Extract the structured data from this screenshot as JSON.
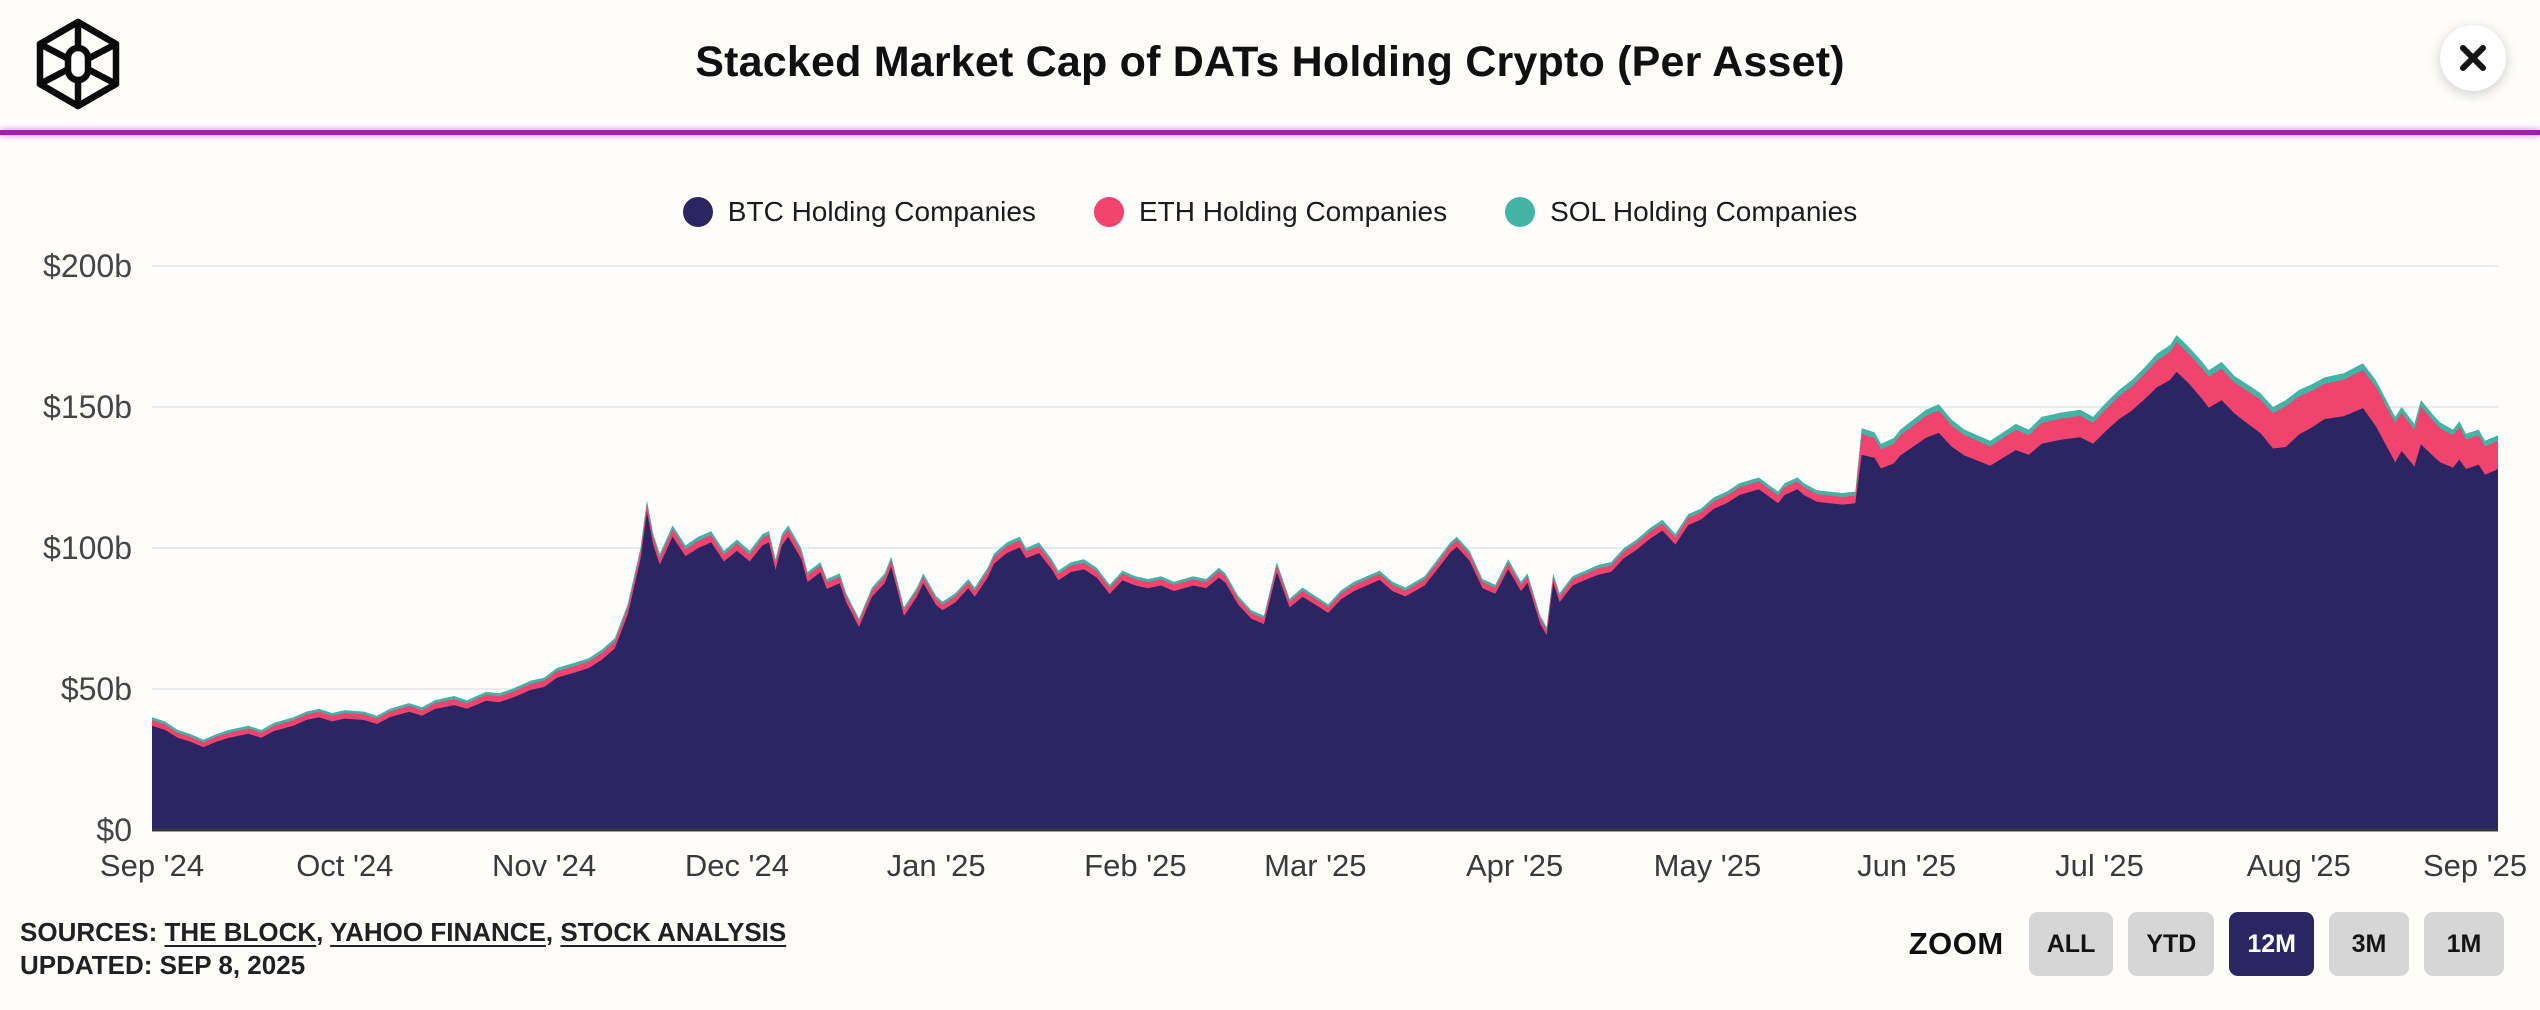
{
  "header": {
    "title": "Stacked Market Cap of DATs Holding Crypto (Per Asset)"
  },
  "legend": [
    {
      "label": "BTC Holding Companies",
      "color": "#2B2564"
    },
    {
      "label": "ETH Holding Companies",
      "color": "#F0436E"
    },
    {
      "label": "SOL Holding Companies",
      "color": "#42B4A6"
    }
  ],
  "footer": {
    "sources_label": "SOURCES:",
    "sources": [
      "THE BLOCK",
      "YAHOO FINANCE",
      "STOCK ANALYSIS"
    ],
    "separator": ",",
    "updated": "UPDATED: SEP 8, 2025"
  },
  "zoom": {
    "label": "ZOOM",
    "options": [
      "ALL",
      "YTD",
      "12M",
      "3M",
      "1M"
    ],
    "active": "12M"
  },
  "chart_data": {
    "type": "area",
    "stacked": true,
    "title": "Stacked Market Cap of DATs Holding Crypto (Per Asset)",
    "unit": "USD billions",
    "ylabel": "",
    "xlabel": "",
    "ylim": [
      0,
      200
    ],
    "grid": true,
    "legend_position": "top",
    "x_range": [
      "2024-09-08",
      "2025-09-08"
    ],
    "y_ticks": [
      {
        "label": "$0",
        "value": 0
      },
      {
        "label": "$50b",
        "value": 50
      },
      {
        "label": "$100b",
        "value": 100
      },
      {
        "label": "$150b",
        "value": 150
      },
      {
        "label": "$200b",
        "value": 200
      }
    ],
    "x_ticks": [
      {
        "label": "Sep '24",
        "date": "2024-09-08"
      },
      {
        "label": "Oct '24",
        "date": "2024-10-08"
      },
      {
        "label": "Nov '24",
        "date": "2024-11-08"
      },
      {
        "label": "Dec '24",
        "date": "2024-12-08"
      },
      {
        "label": "Jan '25",
        "date": "2025-01-08"
      },
      {
        "label": "Feb '25",
        "date": "2025-02-08"
      },
      {
        "label": "Mar '25",
        "date": "2025-03-08"
      },
      {
        "label": "Apr '25",
        "date": "2025-04-08"
      },
      {
        "label": "May '25",
        "date": "2025-05-08"
      },
      {
        "label": "Jun '25",
        "date": "2025-06-08"
      },
      {
        "label": "Jul '25",
        "date": "2025-07-08"
      },
      {
        "label": "Aug '25",
        "date": "2025-08-08"
      },
      {
        "label": "Sep '25",
        "date": "2025-09-08"
      }
    ],
    "series": [
      {
        "name": "BTC Holding Companies",
        "color": "#2B2564"
      },
      {
        "name": "ETH Holding Companies",
        "color": "#F0436E"
      },
      {
        "name": "SOL Holding Companies",
        "color": "#42B4A6"
      }
    ],
    "points_format": [
      "date",
      "btc_b",
      "eth_b",
      "sol_b"
    ],
    "points": [
      [
        "2024-09-08",
        37,
        2,
        1
      ],
      [
        "2024-09-10",
        35.5,
        2,
        1
      ],
      [
        "2024-09-12",
        32.7,
        1.8,
        1
      ],
      [
        "2024-09-14",
        31.3,
        1.8,
        0.9
      ],
      [
        "2024-09-16",
        29.4,
        1.7,
        0.9
      ],
      [
        "2024-09-18",
        31.3,
        1.8,
        0.9
      ],
      [
        "2024-09-20",
        32.7,
        1.8,
        1
      ],
      [
        "2024-09-23",
        34.1,
        1.9,
        1
      ],
      [
        "2024-09-25",
        32.7,
        1.8,
        1
      ],
      [
        "2024-09-27",
        35.1,
        1.9,
        1
      ],
      [
        "2024-09-30",
        37,
        2,
        1
      ],
      [
        "2024-10-02",
        39,
        2,
        1
      ],
      [
        "2024-10-04",
        40,
        2,
        1
      ],
      [
        "2024-10-06",
        38.5,
        2,
        1
      ],
      [
        "2024-10-08",
        39.5,
        2,
        1
      ],
      [
        "2024-10-11",
        39,
        2,
        1
      ],
      [
        "2024-10-13",
        37.6,
        1.9,
        1
      ],
      [
        "2024-10-15",
        40,
        2,
        1
      ],
      [
        "2024-10-18",
        41.9,
        2.1,
        1
      ],
      [
        "2024-10-20",
        40.5,
        2,
        1
      ],
      [
        "2024-10-22",
        42.9,
        2.1,
        1
      ],
      [
        "2024-10-25",
        44.3,
        2.1,
        1.1
      ],
      [
        "2024-10-27",
        43,
        2,
        1
      ],
      [
        "2024-10-30",
        45.8,
        2.1,
        1.1
      ],
      [
        "2024-11-01",
        45.3,
        2.1,
        1.1
      ],
      [
        "2024-11-03",
        46.8,
        2.1,
        1.1
      ],
      [
        "2024-11-06",
        49.7,
        2.2,
        1.1
      ],
      [
        "2024-11-08",
        50.7,
        2.2,
        1.1
      ],
      [
        "2024-11-10",
        54,
        2.3,
        1.2
      ],
      [
        "2024-11-13",
        56,
        2.3,
        1.2
      ],
      [
        "2024-11-15",
        57.5,
        2.3,
        1.2
      ],
      [
        "2024-11-17",
        60.4,
        2.4,
        1.2
      ],
      [
        "2024-11-19",
        64.4,
        2.4,
        1.2
      ],
      [
        "2024-11-21",
        76.2,
        2.5,
        1.3
      ],
      [
        "2024-11-23",
        96,
        2.6,
        1.4
      ],
      [
        "2024-11-24",
        112.8,
        2.7,
        1.5
      ],
      [
        "2024-11-25",
        101,
        2.6,
        1.4
      ],
      [
        "2024-11-26",
        94.1,
        2.5,
        1.4
      ],
      [
        "2024-11-27",
        99,
        2.6,
        1.4
      ],
      [
        "2024-11-28",
        104,
        2.6,
        1.4
      ],
      [
        "2024-11-30",
        97.1,
        2.5,
        1.4
      ],
      [
        "2024-12-02",
        100,
        2.6,
        1.4
      ],
      [
        "2024-12-04",
        102,
        2.6,
        1.4
      ],
      [
        "2024-12-06",
        95.2,
        2.5,
        1.3
      ],
      [
        "2024-12-08",
        99,
        2.6,
        1.4
      ],
      [
        "2024-12-10",
        95.2,
        2.5,
        1.3
      ],
      [
        "2024-12-12",
        101,
        2.6,
        1.4
      ],
      [
        "2024-12-13",
        102,
        2.6,
        1.4
      ],
      [
        "2024-12-14",
        92.2,
        2.5,
        1.3
      ],
      [
        "2024-12-15",
        101,
        2.6,
        1.4
      ],
      [
        "2024-12-16",
        104,
        2.6,
        1.4
      ],
      [
        "2024-12-18",
        96.2,
        2.5,
        1.3
      ],
      [
        "2024-12-19",
        87.9,
        2.4,
        1.2
      ],
      [
        "2024-12-21",
        91.4,
        2.4,
        1.2
      ],
      [
        "2024-12-22",
        85.5,
        2.3,
        1.2
      ],
      [
        "2024-12-24",
        87.5,
        2.3,
        1.2
      ],
      [
        "2024-12-25",
        80.7,
        2.2,
        1.1
      ],
      [
        "2024-12-27",
        72,
        2,
        1
      ],
      [
        "2024-12-29",
        82.7,
        2.2,
        1.1
      ],
      [
        "2024-12-31",
        87.5,
        2.3,
        1.2
      ],
      [
        "2025-01-01",
        93.4,
        2.4,
        1.2
      ],
      [
        "2025-01-03",
        75.9,
        2.1,
        1
      ],
      [
        "2025-01-05",
        82.7,
        2.2,
        1.1
      ],
      [
        "2025-01-06",
        87.5,
        2.3,
        1.2
      ],
      [
        "2025-01-08",
        79.8,
        2.1,
        1.1
      ],
      [
        "2025-01-09",
        77.9,
        2.1,
        1
      ],
      [
        "2025-01-11",
        80.7,
        2.2,
        1.1
      ],
      [
        "2025-01-13",
        85.7,
        2.2,
        1.1
      ],
      [
        "2025-01-14",
        82.7,
        2.2,
        1.1
      ],
      [
        "2025-01-16",
        89.5,
        2.3,
        1.2
      ],
      [
        "2025-01-17",
        94.4,
        2.4,
        1.2
      ],
      [
        "2025-01-19",
        98.2,
        2.5,
        1.3
      ],
      [
        "2025-01-21",
        100.2,
        2.5,
        1.3
      ],
      [
        "2025-01-22",
        96.4,
        2.4,
        1.2
      ],
      [
        "2025-01-24",
        98.2,
        2.5,
        1.3
      ],
      [
        "2025-01-26",
        92.4,
        2.4,
        1.2
      ],
      [
        "2025-01-27",
        88.5,
        2.3,
        1.2
      ],
      [
        "2025-01-29",
        91.5,
        2.3,
        1.2
      ],
      [
        "2025-01-31",
        92.4,
        2.4,
        1.2
      ],
      [
        "2025-02-02",
        89.5,
        2.3,
        1.2
      ],
      [
        "2025-02-04",
        83.7,
        2.2,
        1.1
      ],
      [
        "2025-02-06",
        88.5,
        2.3,
        1.2
      ],
      [
        "2025-02-08",
        86.7,
        2.2,
        1.1
      ],
      [
        "2025-02-10",
        85.7,
        2.2,
        1.1
      ],
      [
        "2025-02-12",
        86.7,
        2.2,
        1.1
      ],
      [
        "2025-02-14",
        84.7,
        2.2,
        1.1
      ],
      [
        "2025-02-17",
        86.7,
        2.2,
        1.1
      ],
      [
        "2025-02-19",
        85.7,
        2.2,
        1.1
      ],
      [
        "2025-02-21",
        89.5,
        2.3,
        1.2
      ],
      [
        "2025-02-22",
        87.7,
        2.2,
        1.1
      ],
      [
        "2025-02-24",
        79.9,
        2.1,
        1
      ],
      [
        "2025-02-26",
        75,
        2,
        1
      ],
      [
        "2025-02-28",
        73,
        2,
        1
      ],
      [
        "2025-03-02",
        91.5,
        2.3,
        1.2
      ],
      [
        "2025-03-04",
        78.9,
        2.1,
        1
      ],
      [
        "2025-03-06",
        82.7,
        2.2,
        1.1
      ],
      [
        "2025-03-08",
        79.9,
        2.1,
        1
      ],
      [
        "2025-03-10",
        77,
        2,
        1
      ],
      [
        "2025-03-12",
        81.8,
        2.1,
        1.1
      ],
      [
        "2025-03-14",
        84.7,
        2.2,
        1.1
      ],
      [
        "2025-03-16",
        86.7,
        2.2,
        1.1
      ],
      [
        "2025-03-18",
        88.7,
        2.2,
        1.1
      ],
      [
        "2025-03-20",
        84.7,
        2.2,
        1.1
      ],
      [
        "2025-03-22",
        82.8,
        2.1,
        1.1
      ],
      [
        "2025-03-25",
        86.7,
        2.2,
        1.1
      ],
      [
        "2025-03-27",
        92.5,
        2.3,
        1.2
      ],
      [
        "2025-03-29",
        98.4,
        2.4,
        1.2
      ],
      [
        "2025-03-30",
        100.4,
        2.4,
        1.2
      ],
      [
        "2025-04-01",
        95.5,
        2.3,
        1.2
      ],
      [
        "2025-04-03",
        85.7,
        2.2,
        1.1
      ],
      [
        "2025-04-05",
        83.8,
        2.1,
        1.1
      ],
      [
        "2025-04-07",
        92.5,
        2.3,
        1.2
      ],
      [
        "2025-04-09",
        84.7,
        2.2,
        1.1
      ],
      [
        "2025-04-10",
        87.7,
        2.2,
        1.1
      ],
      [
        "2025-04-12",
        73,
        2,
        1
      ],
      [
        "2025-04-13",
        69.1,
        1.9,
        1
      ],
      [
        "2025-04-14",
        87.7,
        2.2,
        1.1
      ],
      [
        "2025-04-15",
        80.8,
        2.1,
        1.1
      ],
      [
        "2025-04-17",
        86.7,
        2.2,
        1.1
      ],
      [
        "2025-04-19",
        88.7,
        2.2,
        1.1
      ],
      [
        "2025-04-21",
        90.5,
        2.3,
        1.2
      ],
      [
        "2025-04-23",
        91.5,
        2.3,
        1.2
      ],
      [
        "2025-04-25",
        96.4,
        2.4,
        1.2
      ],
      [
        "2025-04-27",
        99.4,
        2.4,
        1.2
      ],
      [
        "2025-04-29",
        103.2,
        2.5,
        1.3
      ],
      [
        "2025-05-01",
        106.2,
        2.5,
        1.3
      ],
      [
        "2025-05-03",
        101.2,
        2.5,
        1.3
      ],
      [
        "2025-05-05",
        108.1,
        2.6,
        1.3
      ],
      [
        "2025-05-07",
        110.1,
        2.6,
        1.3
      ],
      [
        "2025-05-09",
        113.9,
        2.7,
        1.4
      ],
      [
        "2025-05-11",
        115.9,
        2.7,
        1.4
      ],
      [
        "2025-05-13",
        118.8,
        2.8,
        1.4
      ],
      [
        "2025-05-16",
        120.8,
        2.8,
        1.4
      ],
      [
        "2025-05-19",
        115.9,
        2.7,
        1.4
      ],
      [
        "2025-05-20",
        118.8,
        2.8,
        1.4
      ],
      [
        "2025-05-22",
        120.8,
        2.8,
        1.4
      ],
      [
        "2025-05-23",
        118.8,
        2.8,
        1.4
      ],
      [
        "2025-05-25",
        116.4,
        2.7,
        1.4
      ],
      [
        "2025-05-27",
        115.9,
        2.7,
        1.4
      ],
      [
        "2025-05-29",
        115.4,
        2.7,
        1.4
      ],
      [
        "2025-05-31",
        115.9,
        2.7,
        1.4
      ],
      [
        "2025-06-01",
        133,
        7.5,
        2
      ],
      [
        "2025-06-03",
        132,
        7,
        2
      ],
      [
        "2025-06-04",
        128.2,
        6.8,
        2
      ],
      [
        "2025-06-06",
        130,
        7,
        2
      ],
      [
        "2025-06-07",
        132.8,
        7.2,
        2
      ],
      [
        "2025-06-09",
        135.9,
        7.5,
        2.1
      ],
      [
        "2025-06-11",
        139.1,
        7.8,
        2.1
      ],
      [
        "2025-06-13",
        140.8,
        8,
        2.2
      ],
      [
        "2025-06-15",
        135.9,
        7.5,
        2.1
      ],
      [
        "2025-06-17",
        132.8,
        7.2,
        2
      ],
      [
        "2025-06-19",
        131,
        7,
        2
      ],
      [
        "2025-06-21",
        129.2,
        6.8,
        2
      ],
      [
        "2025-06-23",
        132,
        7,
        2
      ],
      [
        "2025-06-25",
        134.7,
        7.2,
        2.1
      ],
      [
        "2025-06-27",
        133,
        7,
        2
      ],
      [
        "2025-06-29",
        137,
        7.4,
        2.1
      ],
      [
        "2025-07-02",
        138.4,
        7.5,
        2.1
      ],
      [
        "2025-07-05",
        139.3,
        7.6,
        2.1
      ],
      [
        "2025-07-07",
        137,
        7.4,
        2.1
      ],
      [
        "2025-07-09",
        141.5,
        7.8,
        2.2
      ],
      [
        "2025-07-11",
        145.6,
        8.2,
        2.2
      ],
      [
        "2025-07-13",
        148.7,
        8.5,
        2.3
      ],
      [
        "2025-07-15",
        152.7,
        9,
        2.3
      ],
      [
        "2025-07-17",
        157.1,
        9.5,
        2.4
      ],
      [
        "2025-07-19",
        159.6,
        10,
        2.4
      ],
      [
        "2025-07-20",
        162.5,
        10.5,
        2.5
      ],
      [
        "2025-07-22",
        158.1,
        10.5,
        2.4
      ],
      [
        "2025-07-24",
        152.8,
        10.8,
        2.4
      ],
      [
        "2025-07-25",
        149.7,
        11,
        2.3
      ],
      [
        "2025-07-27",
        152.4,
        11.2,
        2.4
      ],
      [
        "2025-07-29",
        147.7,
        11,
        2.3
      ],
      [
        "2025-07-31",
        144.2,
        11.5,
        2.3
      ],
      [
        "2025-08-02",
        140.8,
        12,
        2.2
      ],
      [
        "2025-08-04",
        135.3,
        12.5,
        2.2
      ],
      [
        "2025-08-06",
        135.8,
        14.5,
        2.2
      ],
      [
        "2025-08-08",
        140.2,
        13.5,
        2.3
      ],
      [
        "2025-08-10",
        142.7,
        13,
        2.3
      ],
      [
        "2025-08-12",
        145.7,
        12.5,
        2.3
      ],
      [
        "2025-08-15",
        146.7,
        13,
        2.3
      ],
      [
        "2025-08-18",
        149.6,
        13.5,
        2.4
      ],
      [
        "2025-08-20",
        143.2,
        14,
        2.3
      ],
      [
        "2025-08-23",
        130.4,
        14,
        2.1
      ],
      [
        "2025-08-24",
        134.4,
        13.5,
        2.1
      ],
      [
        "2025-08-26",
        128.9,
        13,
        2.1
      ],
      [
        "2025-08-27",
        136.8,
        13.5,
        2.2
      ],
      [
        "2025-08-29",
        132.4,
        12.5,
        2.1
      ],
      [
        "2025-08-30",
        130.4,
        12,
        2.1
      ],
      [
        "2025-09-01",
        128.5,
        11.5,
        2
      ],
      [
        "2025-09-02",
        131.4,
        11.5,
        2.1
      ],
      [
        "2025-09-03",
        128,
        10.5,
        2
      ],
      [
        "2025-09-05",
        129.5,
        10.5,
        2
      ],
      [
        "2025-09-06",
        126,
        10,
        2
      ],
      [
        "2025-09-08",
        128,
        10,
        2
      ]
    ]
  }
}
